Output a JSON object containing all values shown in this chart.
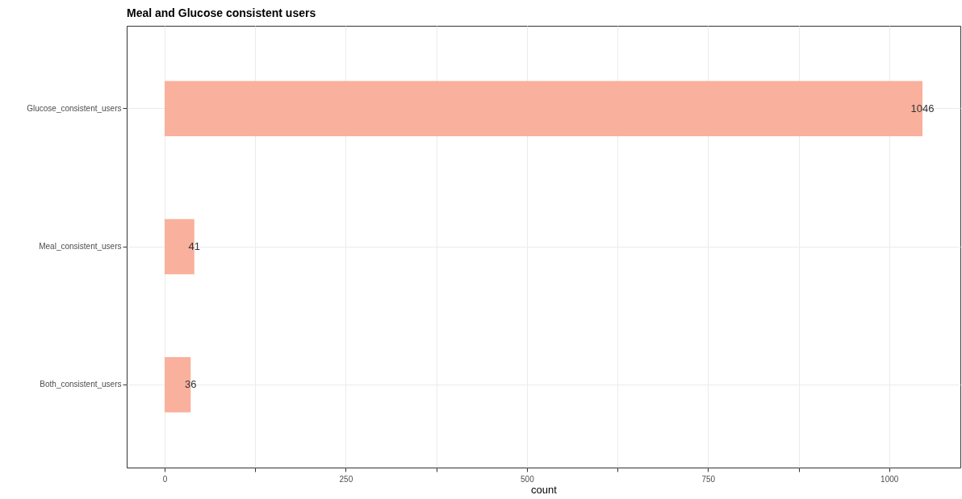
{
  "chart_data": {
    "type": "bar",
    "orientation": "horizontal",
    "title": "Meal and Glucose consistent users",
    "xlabel": "count",
    "categories": [
      "Glucose_consistent_users",
      "Meal_consistent_users",
      "Both_consistent_users"
    ],
    "values": [
      1046,
      41,
      36
    ],
    "color": "#f9b09c",
    "data_labels": true,
    "xlim": [
      -52.3,
      1098.3
    ],
    "xticks": [
      0,
      {
        "value": 125,
        "label": null
      },
      250,
      {
        "value": 375,
        "label": null
      },
      500,
      {
        "value": 625,
        "label": null
      },
      750,
      {
        "value": 875,
        "label": null
      },
      1000
    ],
    "grid": true
  }
}
